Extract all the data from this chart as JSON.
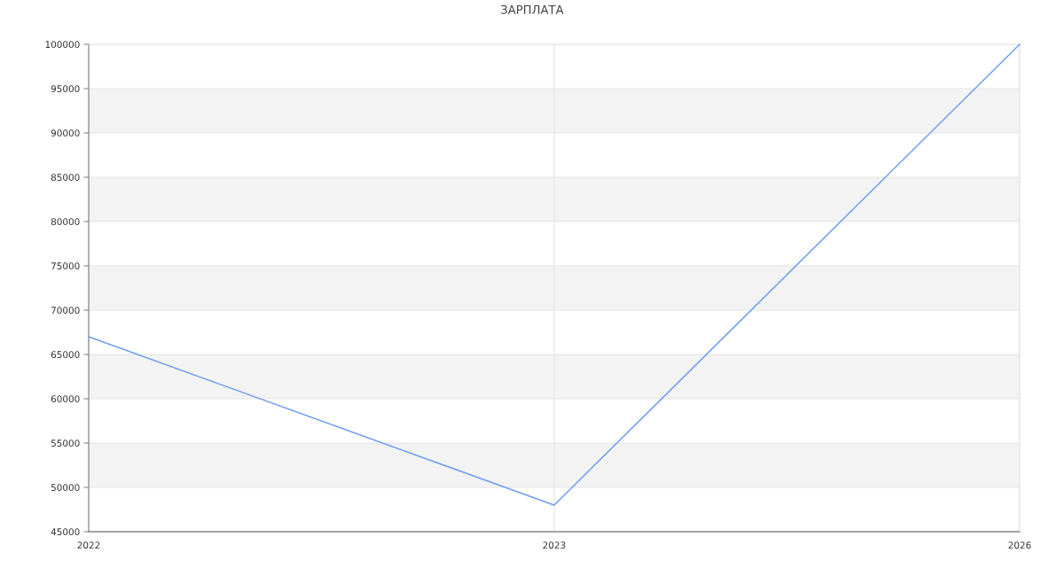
{
  "chart_data": {
    "type": "line",
    "title": "ЗАРПЛАТА",
    "categories": [
      "2022",
      "2023",
      "2026"
    ],
    "series": [
      {
        "color": "#6e9ef0",
        "values": [
          67000,
          48000,
          100000
        ]
      }
    ],
    "ylim": [
      45000,
      100000
    ],
    "yticks": [
      45000,
      50000,
      55000,
      60000,
      65000,
      70000,
      75000,
      80000,
      85000,
      90000,
      95000,
      100000
    ],
    "bands": [
      {
        "axis": "y",
        "from": 50000,
        "to": 55000,
        "color": "#f3f3f3"
      },
      {
        "axis": "y",
        "from": 60000,
        "to": 65000,
        "color": "#f3f3f3"
      },
      {
        "axis": "y",
        "from": 70000,
        "to": 75000,
        "color": "#f3f3f3"
      },
      {
        "axis": "y",
        "from": 80000,
        "to": 85000,
        "color": "#f3f3f3"
      },
      {
        "axis": "y",
        "from": 90000,
        "to": 95000,
        "color": "#f3f3f3"
      }
    ],
    "grid": true,
    "marker": "none",
    "line_style": "solid"
  }
}
